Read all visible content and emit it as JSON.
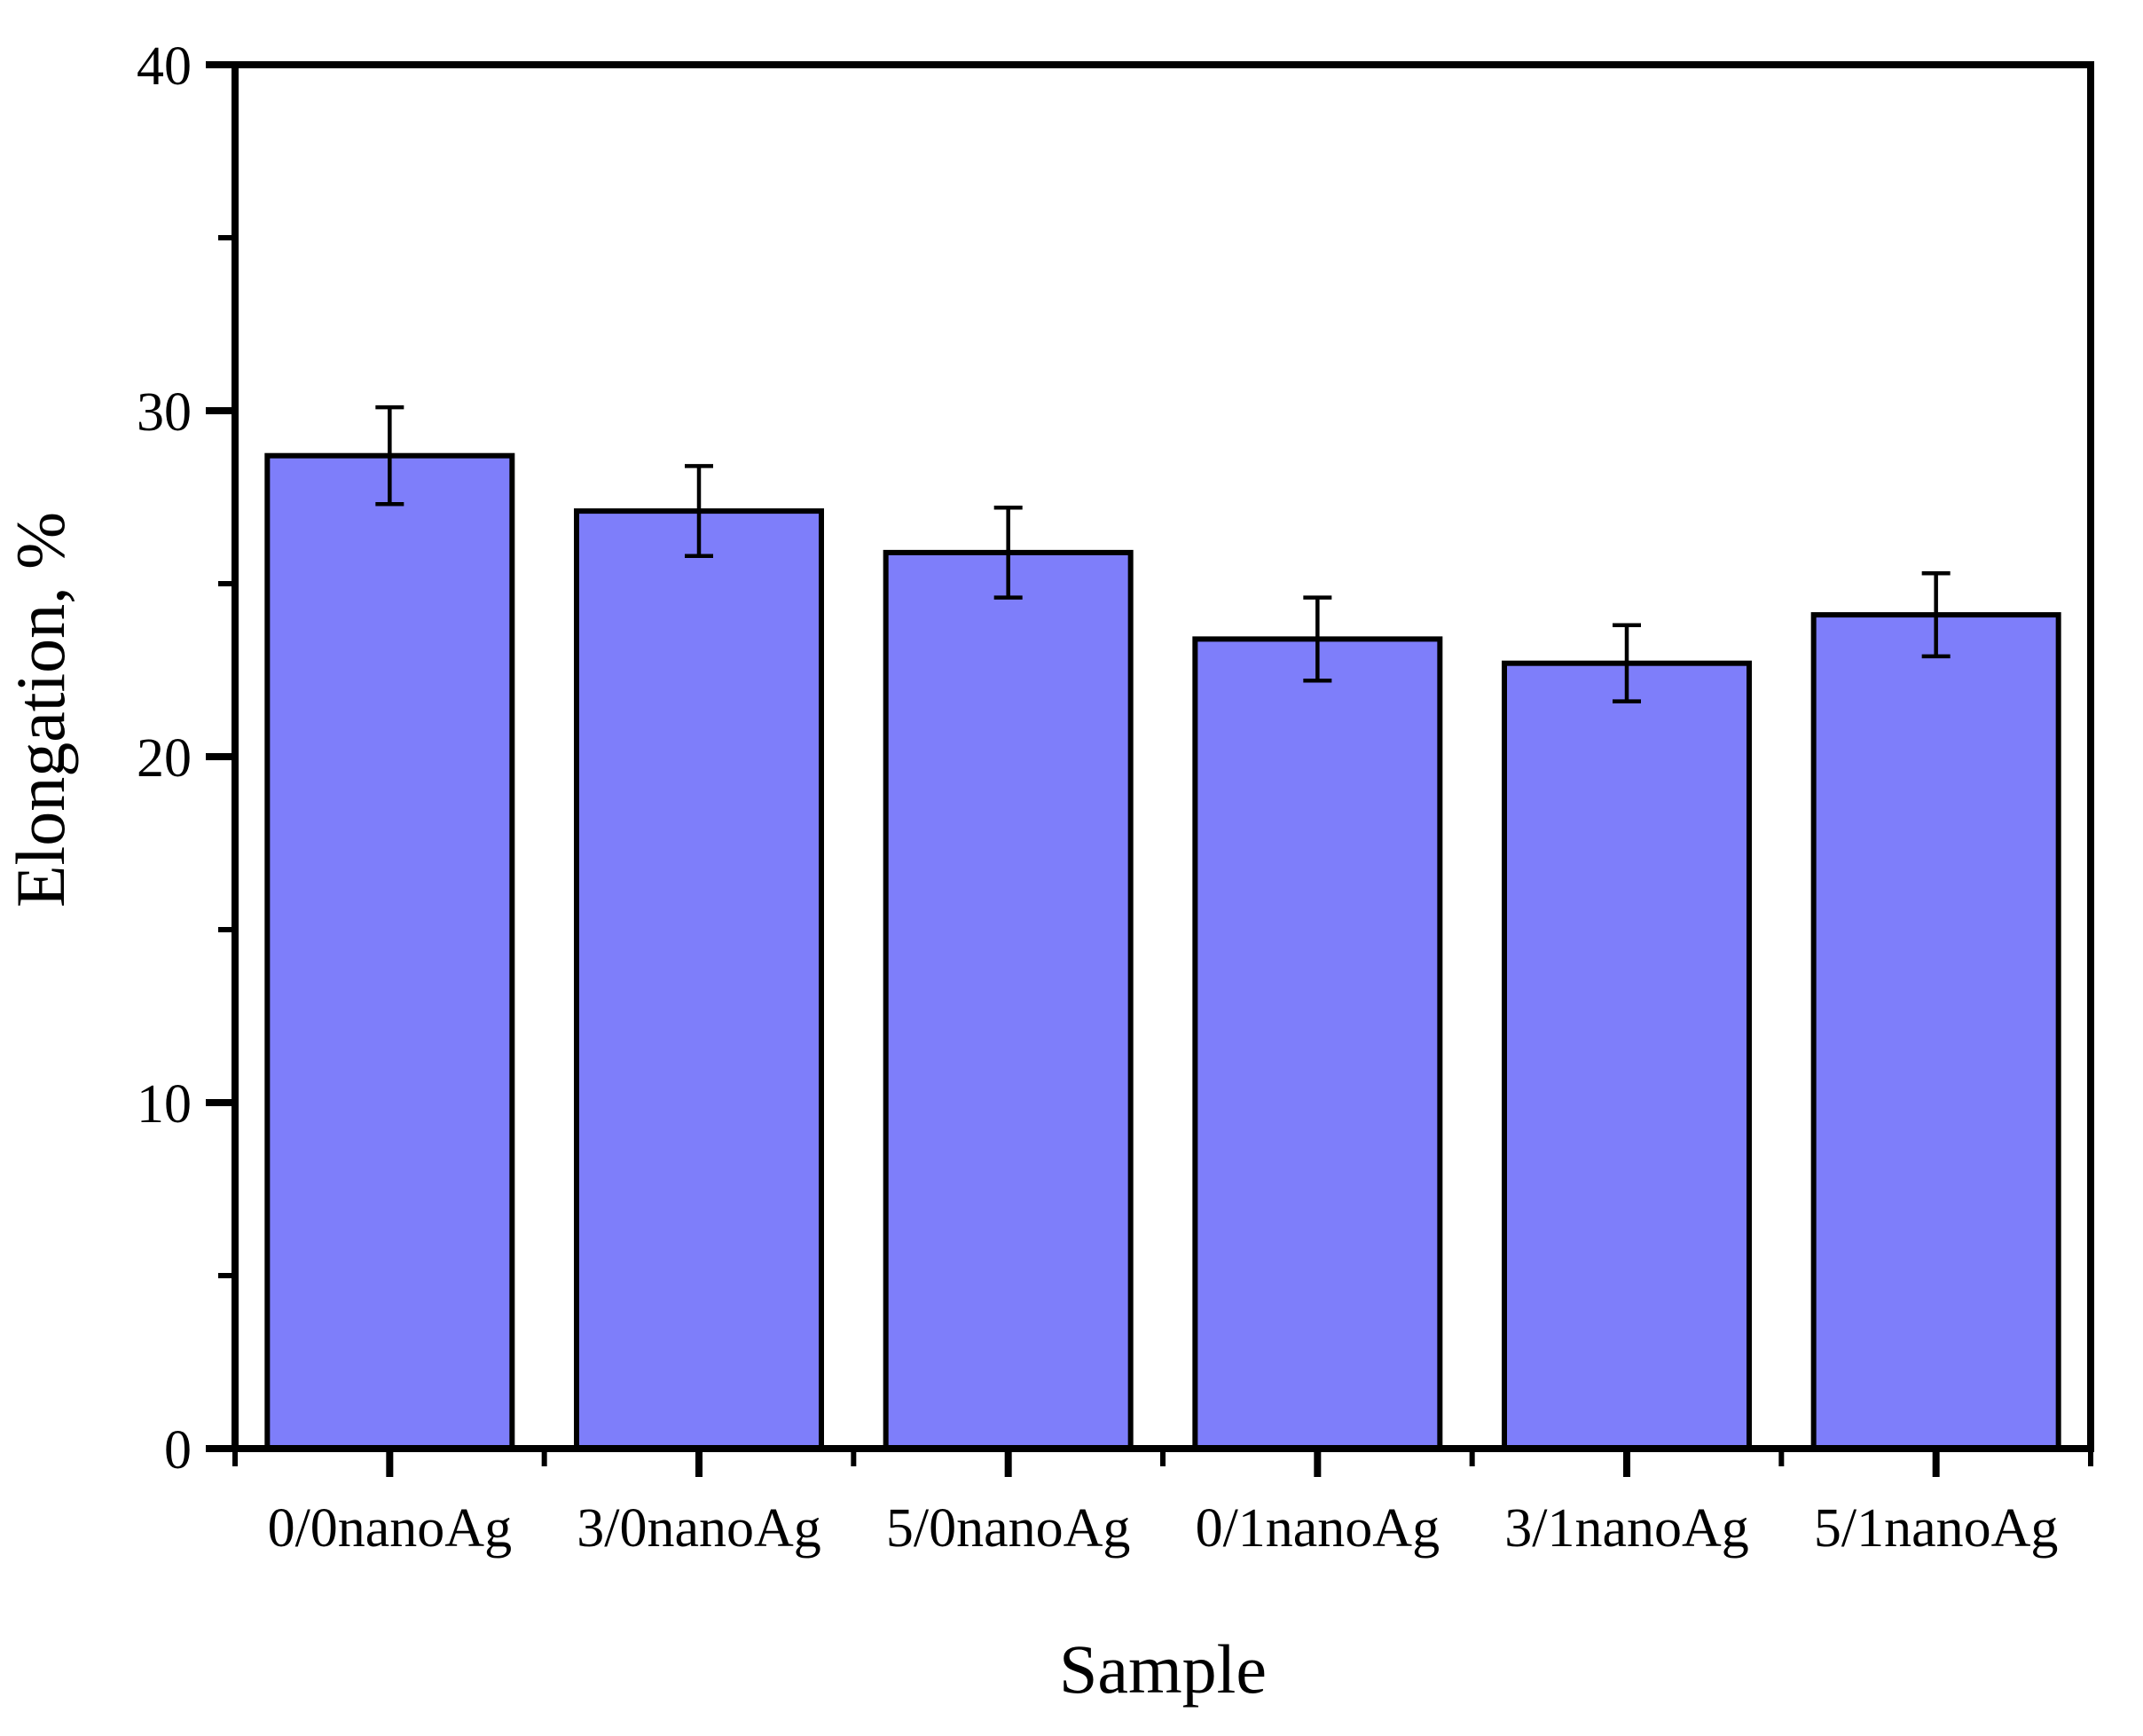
{
  "chart_data": {
    "type": "bar",
    "title": "",
    "categories": [
      "0/0nanoAg",
      "3/0nanoAg",
      "5/0nanoAg",
      "0/1nanoAg",
      "3/1nanoAg",
      "5/1nanoAg"
    ],
    "values": [
      28.7,
      27.1,
      25.9,
      23.4,
      22.7,
      24.1
    ],
    "errors": [
      1.4,
      1.3,
      1.3,
      1.2,
      1.1,
      1.2
    ],
    "xlabel": "Sample",
    "ylabel": "Elongation, %",
    "ylim": [
      0,
      40
    ],
    "y_major_ticks": [
      0,
      10,
      20,
      30,
      40
    ],
    "y_major_tick_labels": [
      "0",
      "10",
      "20",
      "30",
      "40"
    ],
    "y_minor_ticks": [
      5,
      15,
      25,
      35
    ],
    "bar_fill_color": "#7E7EFA",
    "bar_edge_color": "#000000",
    "error_bar_color": "#000000",
    "axis_color": "#000000",
    "background_color": "#FFFFFF",
    "grid": false,
    "legend_position": "none"
  }
}
